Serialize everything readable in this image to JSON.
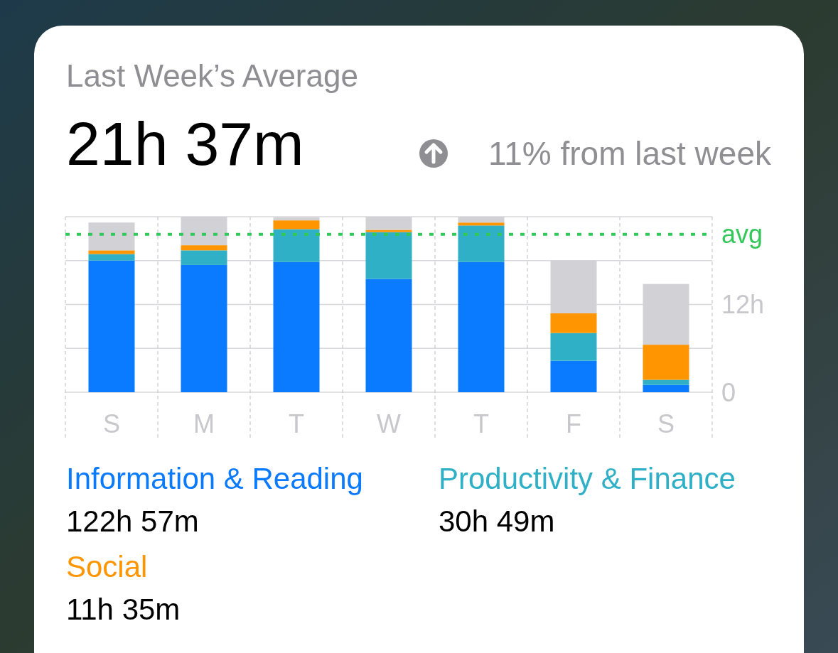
{
  "chart_data": {
    "type": "bar",
    "stacked": true,
    "title": "Last Week’s Average",
    "subtitle": "21h 37m",
    "annotations": [
      "11% from last week",
      "122h 57m",
      "30h 49m",
      "11h 35m"
    ],
    "categories": [
      "S",
      "M",
      "T",
      "W",
      "T",
      "F",
      "S"
    ],
    "series": [
      {
        "name": "Information & Reading",
        "color": "#0a7aff",
        "values": [
          18.0,
          17.4,
          17.8,
          15.5,
          17.8,
          4.3,
          1.0
        ]
      },
      {
        "name": "Productivity & Finance",
        "color": "#30b0c7",
        "values": [
          0.9,
          2.0,
          4.5,
          6.4,
          5.0,
          3.8,
          0.7
        ]
      },
      {
        "name": "Social",
        "color": "#ff9500",
        "values": [
          0.5,
          0.7,
          1.2,
          0.3,
          0.4,
          2.7,
          4.8
        ]
      },
      {
        "color": "#d1d1d6",
        "values": [
          3.8,
          3.9,
          0.4,
          1.8,
          0.8,
          7.2,
          8.3
        ]
      }
    ],
    "ylim": [
      0,
      24
    ],
    "yticks": [
      0,
      {
        "value": 6,
        "label": null
      },
      {
        "value": 12,
        "label": "12h"
      },
      {
        "value": 18,
        "label": null
      },
      {
        "value": 24,
        "label": null
      }
    ],
    "grid": true,
    "legend": "bottom",
    "ref_lines": [
      {
        "axis": "y",
        "value": 21.6,
        "label": "avg",
        "color": "#34c759",
        "line_style": "dotted"
      }
    ]
  }
}
